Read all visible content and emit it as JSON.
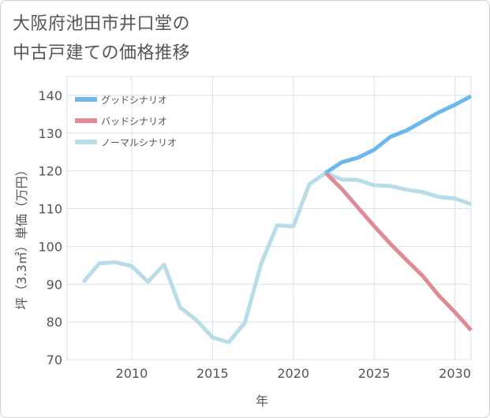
{
  "title_lines": [
    "大阪府池田市井口堂の",
    "中古戸建ての価格推移"
  ],
  "chart_data": {
    "type": "line",
    "xlabel": "年",
    "ylabel": "坪（3.3㎡）単価（万円）",
    "xlim": [
      2006,
      2031
    ],
    "ylim": [
      70,
      145
    ],
    "xticks": [
      2010,
      2015,
      2020,
      2025,
      2030
    ],
    "yticks": [
      70,
      80,
      90,
      100,
      110,
      120,
      130,
      140
    ],
    "grid": true,
    "legend_position": "top-left",
    "series": [
      {
        "name": "グッドシナリオ",
        "color": "#6ab8ee",
        "x": [
          2022,
          2023,
          2024,
          2025,
          2026,
          2027,
          2028,
          2029,
          2030,
          2031
        ],
        "values": [
          119.5,
          122.3,
          123.5,
          125.6,
          129.0,
          130.7,
          133.1,
          135.5,
          137.5,
          139.8
        ]
      },
      {
        "name": "バッドシナリオ",
        "color": "#df8a94",
        "x": [
          2022,
          2023,
          2024,
          2025,
          2026,
          2027,
          2028,
          2029,
          2030,
          2031
        ],
        "values": [
          119.5,
          115.2,
          110.3,
          105.4,
          100.7,
          96.4,
          92.2,
          87.0,
          82.6,
          77.8
        ]
      },
      {
        "name": "ノーマルシナリオ",
        "color": "#b8dce8",
        "x": [
          2007,
          2008,
          2009,
          2010,
          2011,
          2012,
          2013,
          2014,
          2015,
          2016,
          2017,
          2018,
          2019,
          2020,
          2021,
          2022,
          2023,
          2024,
          2025,
          2026,
          2027,
          2028,
          2029,
          2030,
          2031
        ],
        "values": [
          90.5,
          95.5,
          95.8,
          94.8,
          90.6,
          95.2,
          83.8,
          80.5,
          75.9,
          74.6,
          79.8,
          95.3,
          105.6,
          105.3,
          116.5,
          119.5,
          117.7,
          117.6,
          116.2,
          116.0,
          115.0,
          114.4,
          113.1,
          112.7,
          111.2
        ]
      }
    ]
  }
}
